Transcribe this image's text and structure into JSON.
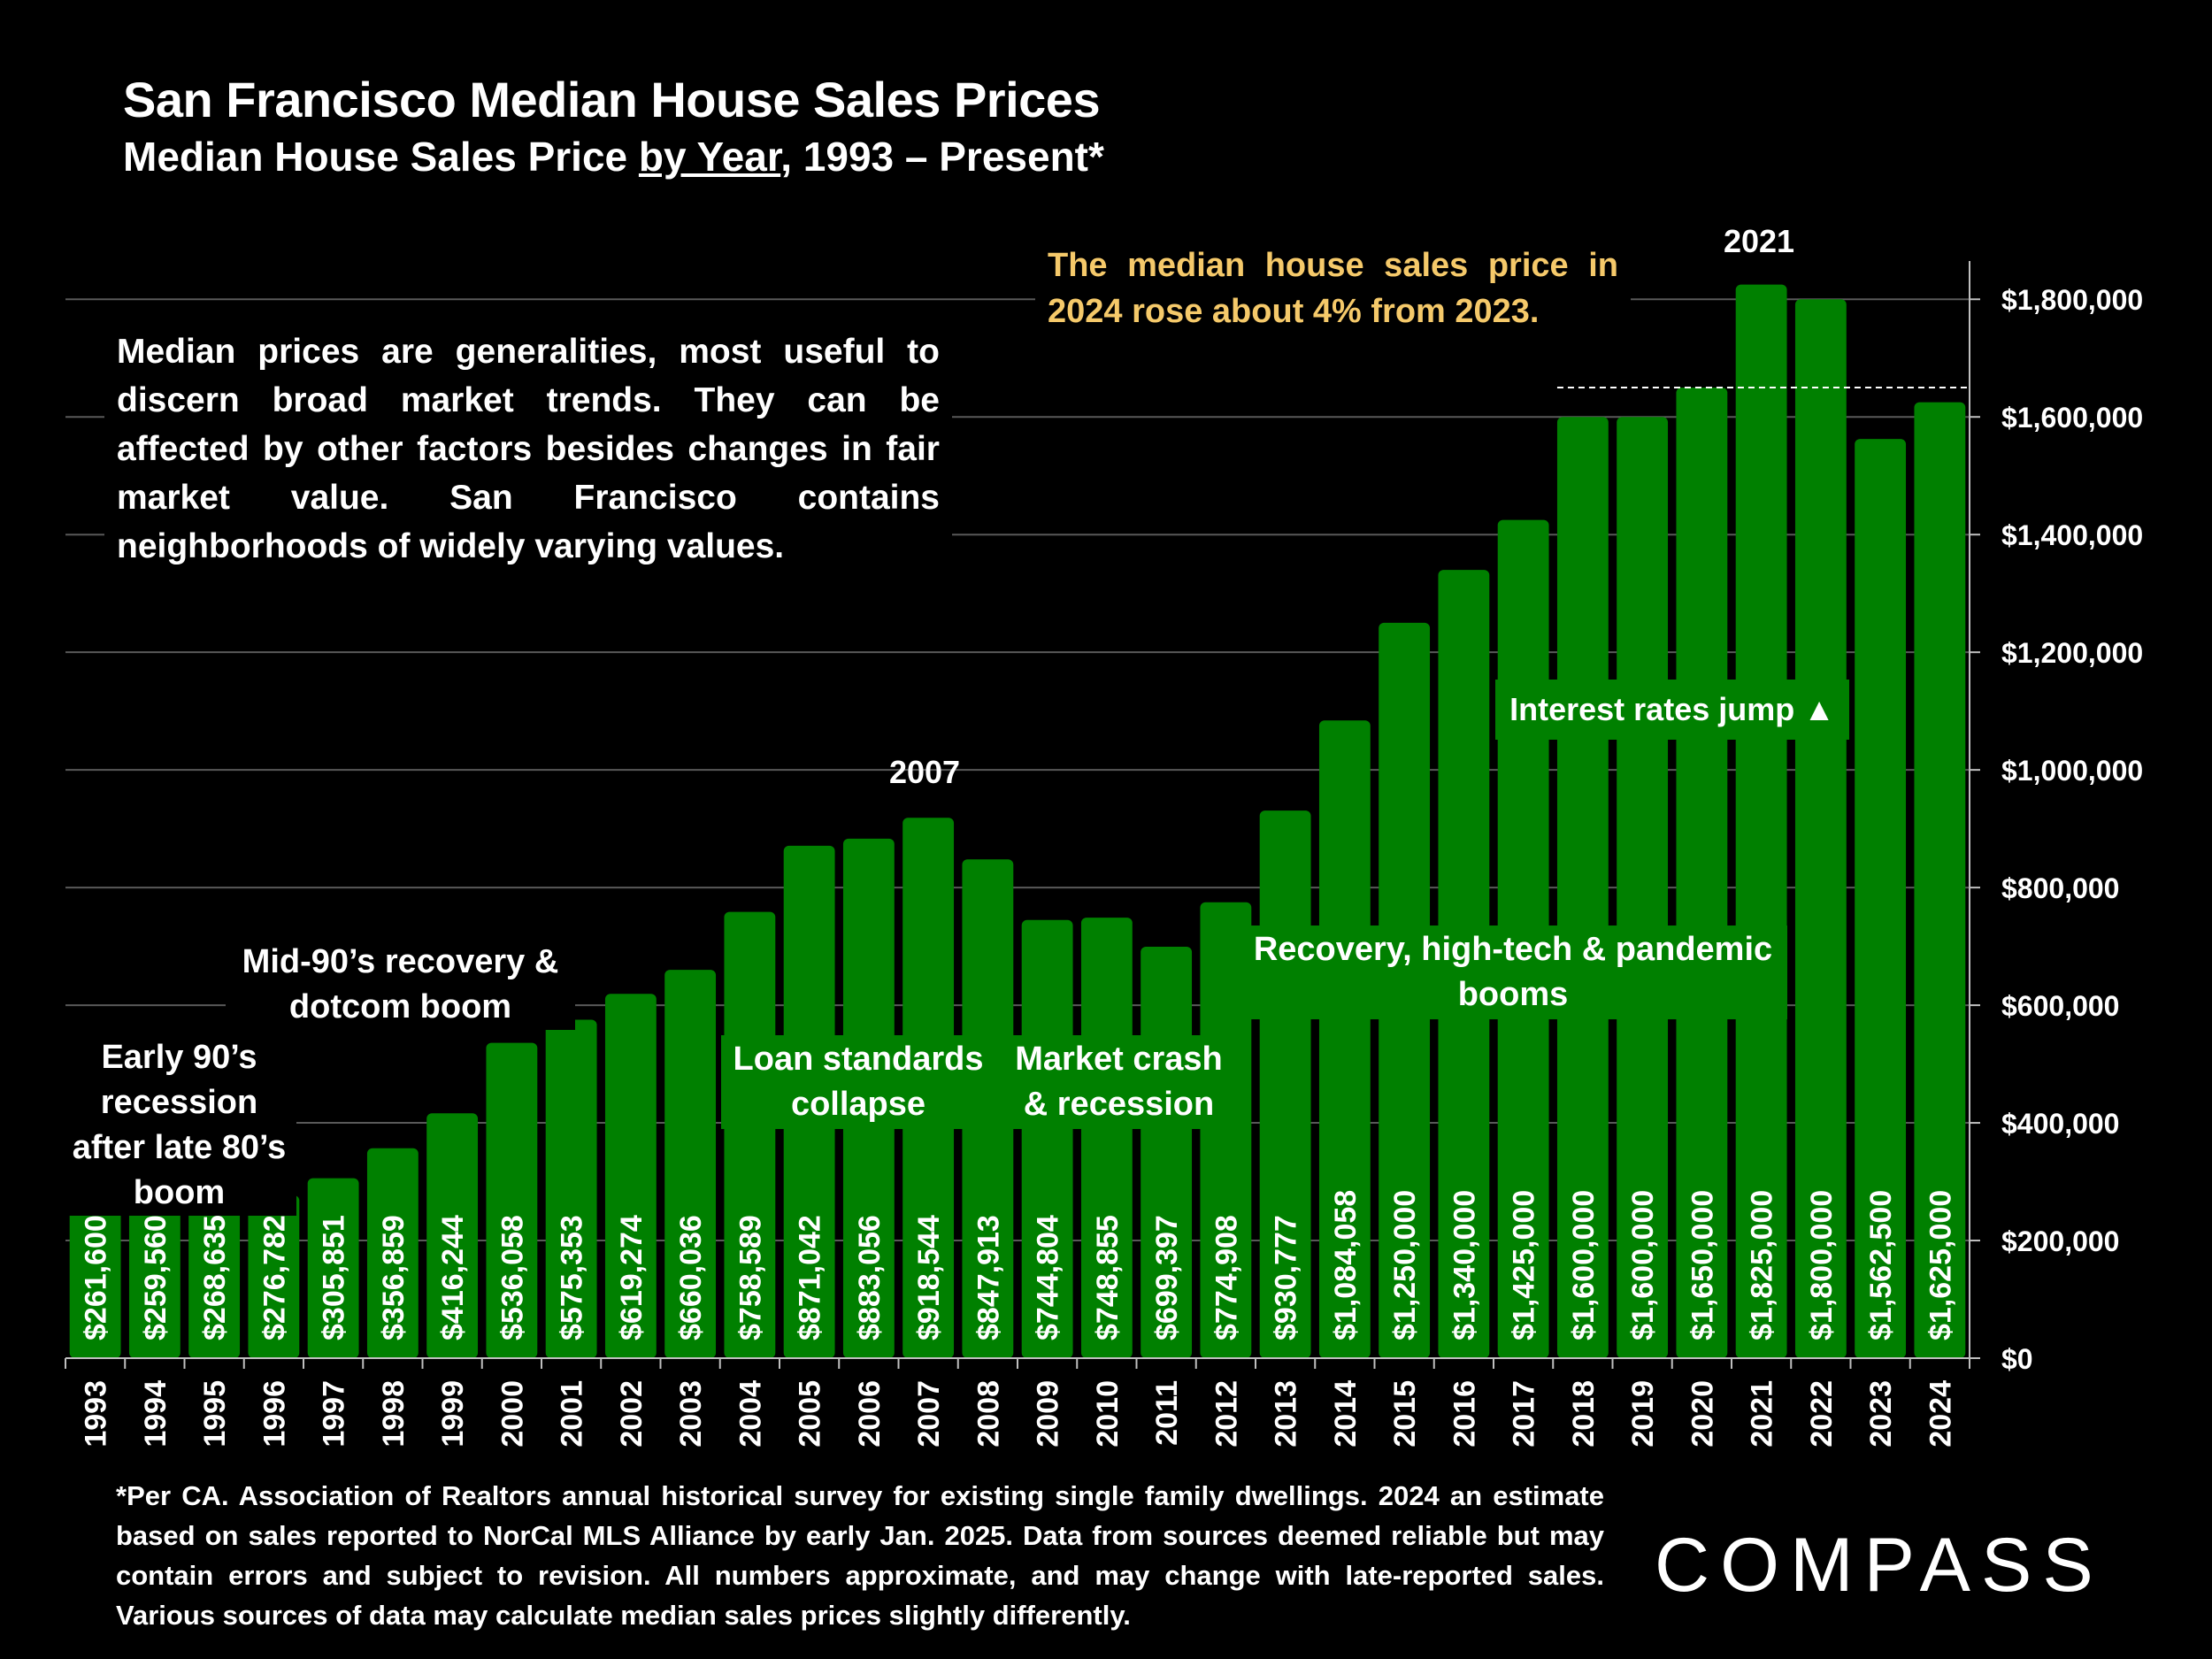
{
  "title": "San Francisco Median House Sales Prices",
  "subtitle": {
    "before": "Median House Sales Price ",
    "underlined": "by Year",
    "after": ", 1993 – Present*"
  },
  "note_left": "Median prices are generalities, most useful to discern broad market trends. They can be affected by other factors besides changes in fair market value. San Francisco contains neighborhoods of widely varying values.",
  "note_right": "The median house sales price in 2024 rose about 4% from 2023.",
  "annotations": {
    "early90s": "Early 90’s recession after late 80’s boom",
    "mid90s": "Mid-90’s recovery & dotcom boom",
    "loan": "Loan standards collapse",
    "crash": "Market crash & recession",
    "recovery": "Recovery, high-tech & pandemic booms",
    "rates": "Interest rates jump ▲",
    "peak2007": "2007",
    "peak2021": "2021"
  },
  "footnote": "*Per CA. Association of Realtors annual historical survey for existing single family dwellings. 2024 an estimate based on sales reported to NorCal MLS Alliance by early Jan. 2025. Data from sources deemed reliable but may contain errors and subject to revision. All numbers approximate, and may change with late-reported sales. Various sources of data may calculate median sales prices slightly differently.",
  "logo": "COMPASS",
  "colors": {
    "bar": "#008000",
    "background": "#000000",
    "highlight_text": "#f5c96a",
    "text": "#ffffff",
    "grid": "#595959"
  },
  "chart_data": {
    "type": "bar",
    "categories": [
      "1993",
      "1994",
      "1995",
      "1996",
      "1997",
      "1998",
      "1999",
      "2000",
      "2001",
      "2002",
      "2003",
      "2004",
      "2005",
      "2006",
      "2007",
      "2008",
      "2009",
      "2010",
      "2011",
      "2012",
      "2013",
      "2014",
      "2015",
      "2016",
      "2017",
      "2018",
      "2019",
      "2020",
      "2021",
      "2022",
      "2023",
      "2024"
    ],
    "values": [
      261600,
      259560,
      268635,
      276782,
      305851,
      356859,
      416244,
      536058,
      575353,
      619274,
      660036,
      758589,
      871042,
      883056,
      918544,
      847913,
      744804,
      748855,
      699397,
      774908,
      930777,
      1084058,
      1250000,
      1340000,
      1425000,
      1600000,
      1600000,
      1650000,
      1825000,
      1800000,
      1562500,
      1625000
    ],
    "labels": [
      "$261,600",
      "$259,560",
      "$268,635",
      "$276,782",
      "$305,851",
      "$356,859",
      "$416,244",
      "$536,058",
      "$575,353",
      "$619,274",
      "$660,036",
      "$758,589",
      "$871,042",
      "$883,056",
      "$918,544",
      "$847,913",
      "$744,804",
      "$748,855",
      "$699,397",
      "$774,908",
      "$930,777",
      "$1,084,058",
      "$1,250,000",
      "$1,340,000",
      "$1,425,000",
      "$1,600,000",
      "$1,600,000",
      "$1,650,000",
      "$1,825,000",
      "$1,800,000",
      "$1,562,500",
      "$1,625,000"
    ],
    "ylim": [
      0,
      1850000
    ],
    "yticks": [
      0,
      200000,
      400000,
      600000,
      800000,
      1000000,
      1200000,
      1400000,
      1600000,
      1800000
    ],
    "ytick_labels": [
      "$0",
      "$200,000",
      "$400,000",
      "$600,000",
      "$800,000",
      "$1,000,000",
      "$1,200,000",
      "$1,400,000",
      "$1,600,000",
      "$1,800,000"
    ],
    "y_axis_side": "right",
    "grid": true,
    "reference_line": {
      "value": 1650000,
      "style": "dashed",
      "from": "2018",
      "to": "2024"
    }
  }
}
